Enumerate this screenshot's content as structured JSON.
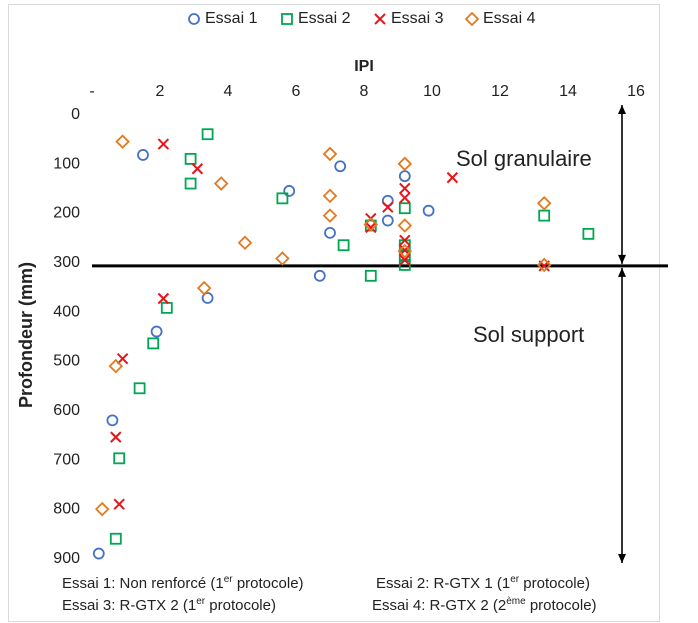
{
  "chart_data": {
    "type": "scatter",
    "xlabel": "IPI",
    "ylabel": "Profondeur (mm)",
    "xlim": [
      0,
      16
    ],
    "ylim": [
      0,
      900
    ],
    "x_ticks": [
      "-",
      "2",
      "4",
      "6",
      "8",
      "10",
      "12",
      "14",
      "16"
    ],
    "y_ticks": [
      "0",
      "100",
      "200",
      "300",
      "400",
      "500",
      "600",
      "700",
      "800",
      "900"
    ],
    "x_axis_position": "top",
    "y_axis_reversed": true,
    "grid": false,
    "legend_position": "top",
    "series": [
      {
        "name": "Essai 1",
        "marker": "circle",
        "color": "#4472C4",
        "points": [
          [
            1.5,
            85
          ],
          [
            5.8,
            158
          ],
          [
            7.3,
            108
          ],
          [
            9.2,
            128
          ],
          [
            9.9,
            198
          ],
          [
            8.7,
            178
          ],
          [
            8.7,
            218
          ],
          [
            7.0,
            243
          ],
          [
            6.7,
            330
          ],
          [
            3.4,
            375
          ],
          [
            1.9,
            443
          ],
          [
            0.6,
            623
          ],
          [
            0.2,
            893
          ]
        ]
      },
      {
        "name": "Essai 2",
        "marker": "square",
        "color": "#00A651",
        "points": [
          [
            3.4,
            43
          ],
          [
            2.9,
            93
          ],
          [
            2.9,
            143
          ],
          [
            5.6,
            173
          ],
          [
            9.2,
            193
          ],
          [
            13.3,
            208
          ],
          [
            14.6,
            245
          ],
          [
            7.4,
            268
          ],
          [
            8.2,
            228
          ],
          [
            9.2,
            268
          ],
          [
            9.2,
            290
          ],
          [
            9.2,
            308
          ],
          [
            8.2,
            330
          ],
          [
            2.2,
            395
          ],
          [
            1.8,
            467
          ],
          [
            1.4,
            558
          ],
          [
            0.8,
            700
          ],
          [
            0.7,
            863
          ]
        ]
      },
      {
        "name": "Essai 3",
        "marker": "x",
        "color": "#E8141B",
        "points": [
          [
            2.1,
            63
          ],
          [
            3.1,
            113
          ],
          [
            10.6,
            131
          ],
          [
            9.2,
            153
          ],
          [
            9.2,
            172
          ],
          [
            8.7,
            191
          ],
          [
            8.2,
            214
          ],
          [
            8.2,
            232
          ],
          [
            9.2,
            258
          ],
          [
            9.2,
            278
          ],
          [
            9.2,
            298
          ],
          [
            13.3,
            310
          ],
          [
            2.1,
            376
          ],
          [
            0.9,
            498
          ],
          [
            0.7,
            657
          ],
          [
            0.8,
            793
          ]
        ]
      },
      {
        "name": "Essai 4",
        "marker": "diamond",
        "color": "#E3791F",
        "points": [
          [
            0.9,
            58
          ],
          [
            7.0,
            83
          ],
          [
            9.2,
            103
          ],
          [
            3.8,
            143
          ],
          [
            7.0,
            168
          ],
          [
            13.3,
            183
          ],
          [
            7.0,
            208
          ],
          [
            9.2,
            228
          ],
          [
            8.2,
            226
          ],
          [
            4.5,
            263
          ],
          [
            9.2,
            280
          ],
          [
            5.6,
            295
          ],
          [
            13.3,
            308
          ],
          [
            3.3,
            355
          ],
          [
            0.7,
            513
          ],
          [
            0.3,
            803
          ]
        ]
      }
    ],
    "annotations": {
      "boundary_depth": 310,
      "boundary_line_label_top": "Sol granulaire",
      "boundary_line_label_bottom": "Sol support"
    }
  },
  "captions": {
    "e1_prefix": "Essai 1: Non renforcé (1",
    "e1_sup": "er",
    "e1_suffix": " protocole)",
    "e2_prefix": "Essai 2: R-GTX 1 (1",
    "e2_sup": "er",
    "e2_suffix": " protocole)",
    "e3_prefix": "Essai 3: R-GTX 2 (1",
    "e3_sup": "er",
    "e3_suffix": " protocole)",
    "e4_prefix": "Essai 4: R-GTX 2 (2",
    "e4_sup": "ème",
    "e4_suffix": " protocole)"
  }
}
